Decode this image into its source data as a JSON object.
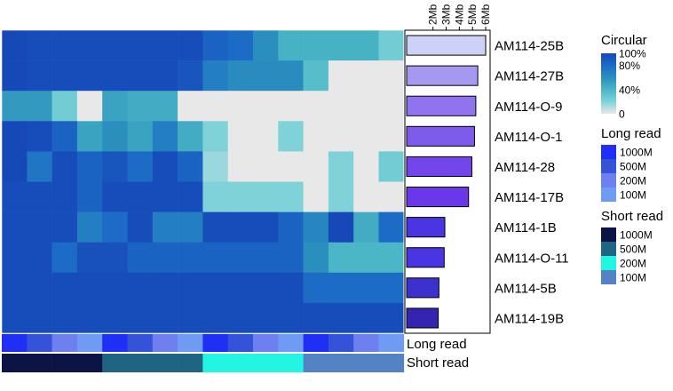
{
  "chart_data": {
    "type": "heatmap",
    "rows": [
      "AM114-25B",
      "AM114-27B",
      "AM114-O-9",
      "AM114-O-1",
      "AM114-28",
      "AM114-17B",
      "AM114-1B",
      "AM114-O-11",
      "AM114-5B",
      "AM114-19B"
    ],
    "circular_values": [
      [
        100,
        97,
        97,
        97,
        97,
        97,
        97,
        97,
        85,
        80,
        60,
        42,
        42,
        42,
        42,
        25
      ],
      [
        100,
        97,
        97,
        97,
        97,
        97,
        97,
        92,
        70,
        62,
        62,
        62,
        35,
        0,
        0,
        0
      ],
      [
        55,
        55,
        25,
        0,
        50,
        45,
        45,
        0,
        0,
        0,
        0,
        0,
        0,
        0,
        0,
        0
      ],
      [
        100,
        97,
        85,
        50,
        60,
        50,
        70,
        45,
        20,
        0,
        0,
        20,
        0,
        0,
        0,
        0
      ],
      [
        100,
        75,
        97,
        85,
        92,
        80,
        97,
        85,
        15,
        0,
        0,
        0,
        0,
        20,
        0,
        25
      ],
      [
        97,
        97,
        97,
        85,
        97,
        97,
        97,
        97,
        20,
        20,
        20,
        20,
        0,
        20,
        0,
        0
      ],
      [
        97,
        97,
        97,
        70,
        80,
        97,
        70,
        70,
        97,
        97,
        97,
        85,
        65,
        100,
        45,
        80
      ],
      [
        97,
        97,
        80,
        95,
        95,
        85,
        85,
        85,
        85,
        85,
        85,
        85,
        60,
        40,
        40,
        40
      ],
      [
        97,
        97,
        97,
        97,
        97,
        97,
        97,
        97,
        97,
        97,
        97,
        97,
        80,
        80,
        80,
        80
      ],
      [
        97,
        97,
        97,
        97,
        97,
        97,
        97,
        97,
        97,
        97,
        97,
        97,
        97,
        97,
        97,
        97
      ]
    ],
    "genome_size_mb": [
      6.0,
      5.4,
      5.25,
      5.15,
      4.95,
      4.7,
      2.9,
      2.85,
      2.45,
      2.4
    ],
    "bar_axis_ticks": [
      "2Mb",
      "3Mb",
      "4Mb",
      "5Mb",
      "6Mb"
    ],
    "bar_axis_range_mb": [
      0,
      6.2
    ],
    "long_read_columns": [
      "1000M",
      "500M",
      "200M",
      "100M",
      "1000M",
      "500M",
      "200M",
      "100M",
      "1000M",
      "500M",
      "200M",
      "100M",
      "1000M",
      "500M",
      "200M",
      "100M"
    ],
    "short_read_columns": [
      "1000M",
      "1000M",
      "1000M",
      "1000M",
      "500M",
      "500M",
      "500M",
      "500M",
      "200M",
      "200M",
      "200M",
      "200M",
      "100M",
      "100M",
      "100M",
      "100M"
    ],
    "annotation_row_labels": [
      "Long read",
      "Short read"
    ],
    "legends": {
      "circular": {
        "title": "Circular",
        "ticks": [
          "100%",
          "80%",
          "40%",
          "0"
        ],
        "tick_values": [
          100,
          80,
          40,
          0
        ],
        "color_stops": [
          {
            "value": 0,
            "color": "#e8e8e8"
          },
          {
            "value": 20,
            "color": "#7fd3d8"
          },
          {
            "value": 40,
            "color": "#4bb6c6"
          },
          {
            "value": 60,
            "color": "#2b8fbd"
          },
          {
            "value": 80,
            "color": "#1c6cc6"
          },
          {
            "value": 100,
            "color": "#1648b8"
          }
        ]
      },
      "long_read": {
        "title": "Long read",
        "items": [
          {
            "label": "1000M",
            "color": "#1f2ff5"
          },
          {
            "label": "500M",
            "color": "#3553d9"
          },
          {
            "label": "200M",
            "color": "#6e7ff0"
          },
          {
            "label": "100M",
            "color": "#6f9cf2"
          }
        ]
      },
      "short_read": {
        "title": "Short read",
        "items": [
          {
            "label": "1000M",
            "color": "#0c1446"
          },
          {
            "label": "500M",
            "color": "#1f6583"
          },
          {
            "label": "200M",
            "color": "#22f5e2"
          },
          {
            "label": "100M",
            "color": "#5383c5"
          }
        ]
      }
    },
    "bar_colors": [
      "#cdd0f7",
      "#a498ef",
      "#8f73ef",
      "#7d5cec",
      "#7345ea",
      "#6a38e8",
      "#4a35e2",
      "#4a35e2",
      "#3a31cf",
      "#3524b0"
    ]
  }
}
